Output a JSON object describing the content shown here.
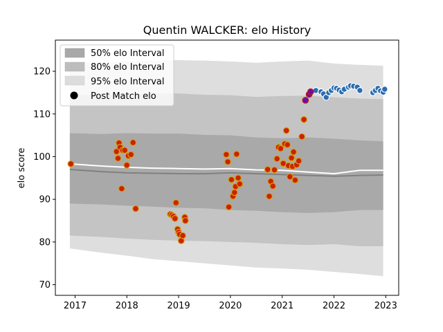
{
  "chart_data": {
    "type": "scatter",
    "title": "Quentin WALCKER: elo History",
    "xlabel": "",
    "ylabel": "elo score",
    "xlim": [
      2016.62,
      2023.25
    ],
    "ylim": [
      67.5,
      127.3
    ],
    "x_ticks": [
      2017,
      2018,
      2019,
      2020,
      2021,
      2022,
      2023
    ],
    "y_ticks": [
      70,
      80,
      90,
      100,
      110,
      120
    ],
    "legend_position": "top-left",
    "legend": [
      {
        "label": "50% elo Interval",
        "kind": "band",
        "color": "#a9a9a9"
      },
      {
        "label": "80% elo Interval",
        "kind": "band",
        "color": "#bdbdbd"
      },
      {
        "label": "95% elo Interval",
        "kind": "band",
        "color": "#dcdcdc"
      },
      {
        "label": "Post Match elo",
        "kind": "marker",
        "color": "#000000"
      }
    ],
    "colors": {
      "band_50": "#a9a9a9",
      "band_80": "#c4c4c4",
      "band_95": "#dedede",
      "mean_line": "#808080",
      "median_line": "#ffffff",
      "past_fill": "#cc2200",
      "past_edge": "#d4a017",
      "future_fill": "#2a6db0",
      "future_edge": "#ffffff",
      "current_fill": "#6a0dad"
    },
    "bands": {
      "x": [
        2016.9,
        2017.5,
        2018.0,
        2018.5,
        2019.0,
        2019.5,
        2020.0,
        2020.5,
        2021.0,
        2021.5,
        2022.0,
        2022.5,
        2022.95
      ],
      "p95_upper": [
        122.0,
        122.0,
        122.3,
        122.5,
        122.6,
        122.5,
        122.3,
        122.0,
        122.3,
        122.5,
        121.8,
        121.5,
        121.3
      ],
      "p80_upper": [
        114.5,
        114.4,
        114.6,
        114.8,
        114.8,
        114.5,
        114.4,
        114.0,
        114.2,
        114.3,
        113.9,
        113.6,
        113.5
      ],
      "p50_upper": [
        105.5,
        105.3,
        105.5,
        105.4,
        105.4,
        105.1,
        105.0,
        104.5,
        104.3,
        104.5,
        104.2,
        103.8,
        103.6
      ],
      "p50_lower": [
        89.0,
        88.8,
        88.5,
        88.3,
        88.0,
        87.9,
        87.5,
        87.3,
        87.0,
        86.8,
        87.0,
        87.5,
        87.5
      ],
      "p80_lower": [
        81.5,
        81.2,
        80.8,
        80.5,
        80.3,
        80.2,
        80.0,
        79.8,
        79.5,
        79.3,
        79.5,
        79.0,
        79.0
      ],
      "p95_lower": [
        78.5,
        77.5,
        76.8,
        76.0,
        75.5,
        75.0,
        74.5,
        74.0,
        73.8,
        73.5,
        73.0,
        72.5,
        72.0
      ]
    },
    "mean_line": {
      "x": [
        2016.9,
        2017.5,
        2018.0,
        2018.5,
        2019.0,
        2019.5,
        2020.0,
        2020.5,
        2021.0,
        2021.5,
        2022.0,
        2022.5,
        2022.95
      ],
      "y": [
        97.0,
        96.5,
        96.2,
        96.1,
        96.0,
        96.0,
        96.2,
        96.0,
        95.8,
        95.6,
        95.4,
        95.6,
        95.7
      ]
    },
    "median_line": {
      "x": [
        2016.9,
        2017.5,
        2018.0,
        2018.5,
        2019.0,
        2019.5,
        2020.0,
        2020.5,
        2021.0,
        2021.5,
        2022.0,
        2022.5,
        2022.95
      ],
      "y": [
        98.3,
        97.8,
        97.5,
        97.3,
        97.2,
        97.1,
        97.2,
        96.9,
        96.8,
        96.4,
        96.0,
        96.8,
        96.8
      ]
    },
    "series": [
      {
        "name": "Post Match elo",
        "role": "past",
        "x": [
          2016.92,
          2017.8,
          2017.83,
          2017.85,
          2017.87,
          2017.9,
          2017.92,
          2017.96,
          2018.0,
          2018.03,
          2018.08,
          2018.12,
          2018.17,
          2018.84,
          2018.87,
          2018.9,
          2018.93,
          2018.95,
          2018.98,
          2019.0,
          2019.02,
          2019.05,
          2019.08,
          2019.12,
          2019.13,
          2019.92,
          2019.95,
          2019.97,
          2020.02,
          2020.05,
          2020.08,
          2020.1,
          2020.12,
          2020.15,
          2020.18,
          2020.72,
          2020.75,
          2020.78,
          2020.82,
          2020.85,
          2020.9,
          2020.93,
          2020.97,
          2021.02,
          2021.05,
          2021.08,
          2021.1,
          2021.12,
          2021.15,
          2021.18,
          2021.2,
          2021.22,
          2021.25,
          2021.28,
          2021.32,
          2021.38,
          2021.42
        ],
        "y": [
          98.3,
          101.2,
          99.6,
          103.2,
          102.2,
          92.5,
          101.5,
          101.5,
          98.0,
          100.2,
          100.5,
          103.3,
          87.8,
          86.5,
          86.3,
          86.0,
          85.5,
          89.2,
          83.0,
          82.3,
          81.8,
          80.3,
          81.5,
          85.8,
          85.0,
          100.5,
          98.8,
          88.2,
          94.6,
          90.7,
          91.6,
          93.0,
          100.6,
          95.0,
          93.6,
          97.0,
          90.7,
          94.2,
          93.1,
          96.9,
          99.5,
          102.2,
          101.9,
          98.4,
          103.0,
          106.1,
          102.8,
          97.9,
          95.3,
          99.7,
          97.7,
          101.1,
          94.5,
          98.1,
          99.0,
          104.7,
          108.7
        ]
      },
      {
        "name": "Post Match elo",
        "role": "future",
        "x": [
          2021.65,
          2021.75,
          2021.8,
          2021.85,
          2021.9,
          2021.95,
          2022.0,
          2022.05,
          2022.1,
          2022.15,
          2022.2,
          2022.28,
          2022.32,
          2022.38,
          2022.45,
          2022.5,
          2022.75,
          2022.8,
          2022.85,
          2022.9,
          2022.95,
          2022.98
        ],
        "y": [
          115.5,
          115.2,
          114.7,
          113.9,
          115.0,
          115.5,
          116.1,
          116.0,
          115.6,
          115.2,
          115.8,
          116.3,
          116.6,
          116.5,
          116.3,
          115.5,
          115.0,
          115.5,
          116.0,
          115.4,
          115.1,
          115.8
        ]
      },
      {
        "name": "Post Match elo",
        "role": "current",
        "x": [
          2021.45,
          2021.52,
          2021.55
        ],
        "y": [
          113.2,
          114.6,
          115.2
        ]
      }
    ]
  }
}
